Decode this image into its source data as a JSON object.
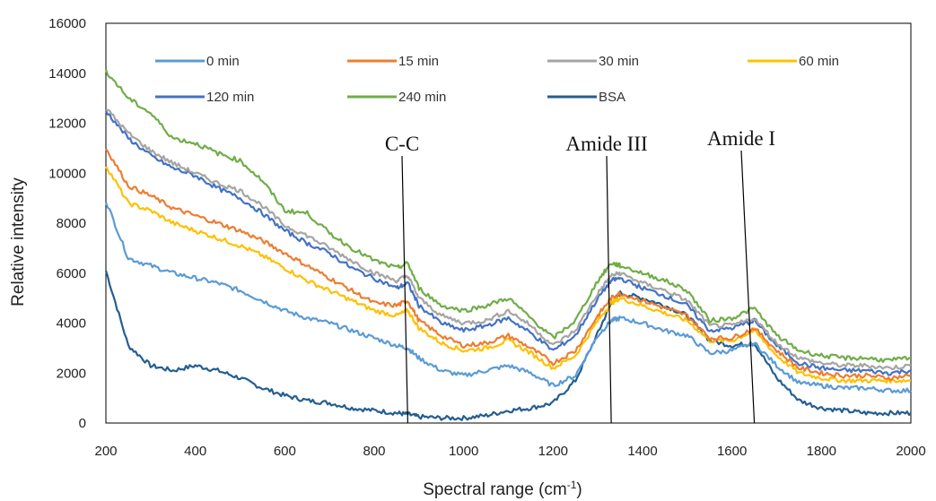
{
  "chart_data": {
    "type": "line",
    "xlabel": "Spectral range (cm",
    "xlabel_sup": "-1",
    "xlabel_end": ")",
    "ylabel": "Relative intensity",
    "xlim": [
      200,
      2000
    ],
    "ylim": [
      0,
      16000
    ],
    "x_ticks": [
      200,
      400,
      600,
      800,
      1000,
      1200,
      1400,
      1600,
      1800,
      2000
    ],
    "y_ticks": [
      0,
      2000,
      4000,
      6000,
      8000,
      10000,
      12000,
      14000,
      16000
    ],
    "grid": false,
    "legend_position": "top",
    "x": [
      200,
      250,
      300,
      350,
      400,
      450,
      500,
      550,
      600,
      650,
      700,
      750,
      800,
      850,
      875,
      900,
      950,
      1000,
      1050,
      1100,
      1150,
      1200,
      1250,
      1300,
      1330,
      1350,
      1400,
      1450,
      1500,
      1550,
      1600,
      1650,
      1700,
      1750,
      1800,
      1850,
      1900,
      1950,
      2000
    ],
    "series": [
      {
        "name": "0 min",
        "color": "#5b9bd5",
        "values": [
          8900,
          6600,
          6300,
          6000,
          5800,
          5600,
          5300,
          4900,
          4500,
          4200,
          4000,
          3700,
          3400,
          3100,
          3000,
          2600,
          2100,
          1900,
          2100,
          2300,
          2000,
          1500,
          1900,
          3500,
          4100,
          4200,
          4000,
          3700,
          3500,
          2800,
          2900,
          3200,
          2300,
          1600,
          1500,
          1400,
          1400,
          1300,
          1300
        ]
      },
      {
        "name": "15 min",
        "color": "#ed7d31",
        "values": [
          11000,
          9500,
          9100,
          8600,
          8300,
          8000,
          7700,
          7300,
          6800,
          6300,
          5800,
          5300,
          4800,
          4700,
          4900,
          4100,
          3500,
          3100,
          3200,
          3500,
          3000,
          2400,
          2900,
          4300,
          5000,
          5200,
          4900,
          4600,
          4300,
          3400,
          3400,
          3800,
          2900,
          2200,
          2000,
          1900,
          1900,
          1800,
          1900
        ]
      },
      {
        "name": "30 min",
        "color": "#a5a5a5",
        "values": [
          12600,
          11600,
          10900,
          10400,
          10000,
          9600,
          9300,
          8700,
          7900,
          7500,
          7000,
          6500,
          6000,
          5700,
          5900,
          5000,
          4300,
          4000,
          4100,
          4500,
          3900,
          3100,
          3700,
          5200,
          5900,
          6000,
          5600,
          5300,
          4900,
          3900,
          3900,
          4200,
          3200,
          2600,
          2400,
          2300,
          2300,
          2200,
          2300
        ]
      },
      {
        "name": "60 min",
        "color": "#ffc000",
        "values": [
          10300,
          8800,
          8500,
          8000,
          7700,
          7400,
          7100,
          6700,
          6200,
          5700,
          5300,
          4900,
          4500,
          4300,
          4500,
          3800,
          3200,
          2900,
          3000,
          3300,
          2800,
          2200,
          2700,
          4100,
          4800,
          5000,
          4700,
          4400,
          4100,
          3300,
          3300,
          3700,
          2700,
          2000,
          1800,
          1700,
          1700,
          1700,
          1700
        ]
      },
      {
        "name": "120 min",
        "color": "#4472c4",
        "values": [
          12500,
          11400,
          10700,
          10200,
          9900,
          9400,
          9000,
          8400,
          7700,
          7200,
          6800,
          6200,
          5800,
          5400,
          5600,
          4700,
          4000,
          3700,
          3900,
          4200,
          3600,
          2900,
          3500,
          5000,
          5700,
          5800,
          5400,
          5100,
          4700,
          3700,
          3800,
          4100,
          3100,
          2400,
          2200,
          2100,
          2100,
          2000,
          2100
        ]
      },
      {
        "name": "240 min",
        "color": "#70ad47",
        "values": [
          14100,
          13000,
          12400,
          11400,
          11200,
          10800,
          10500,
          9700,
          8500,
          8400,
          7600,
          7000,
          6500,
          6200,
          6400,
          5400,
          4700,
          4500,
          4700,
          5000,
          4200,
          3400,
          4100,
          5700,
          6400,
          6300,
          6000,
          5700,
          5300,
          4100,
          4200,
          4600,
          3500,
          2900,
          2700,
          2600,
          2600,
          2500,
          2600
        ]
      },
      {
        "name": "BSA",
        "color": "#255e91",
        "values": [
          6100,
          3100,
          2300,
          2100,
          2300,
          2100,
          1800,
          1400,
          1100,
          900,
          800,
          600,
          500,
          400,
          350,
          250,
          200,
          200,
          300,
          500,
          600,
          800,
          1700,
          3600,
          4800,
          5200,
          5000,
          4700,
          4300,
          3300,
          3100,
          3200,
          1800,
          900,
          600,
          500,
          400,
          400,
          400
        ]
      }
    ],
    "annotations": [
      {
        "text": "C-C",
        "x": 875
      },
      {
        "text": "Amide III",
        "x": 1330
      },
      {
        "text": "Amide I",
        "x": 1650
      }
    ]
  }
}
